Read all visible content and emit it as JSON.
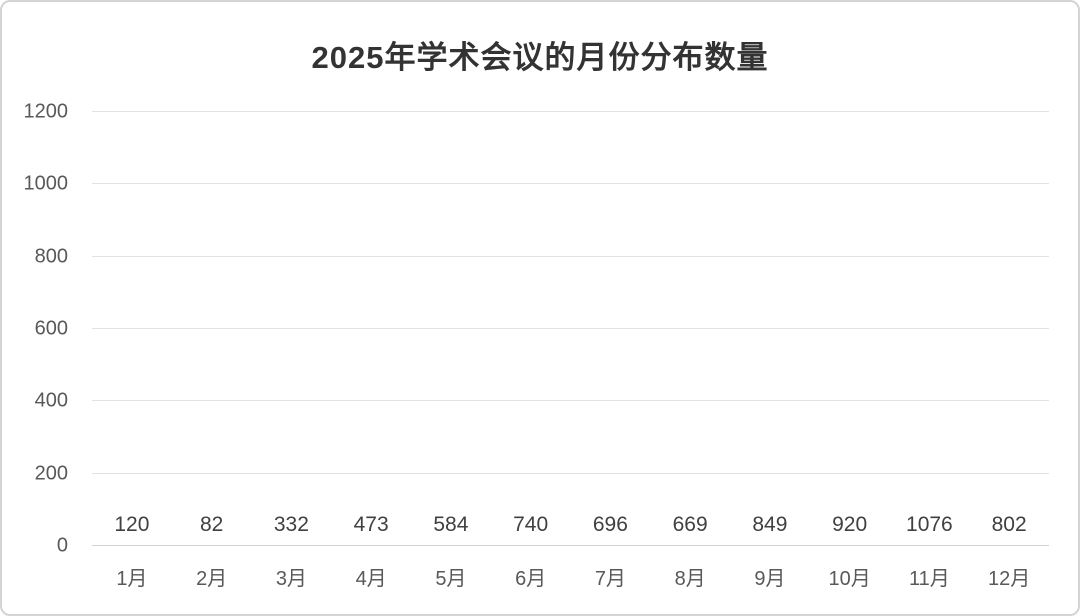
{
  "chart_data": {
    "type": "bar",
    "title": "2025年学术会议的月份分布数量",
    "categories": [
      "1月",
      "2月",
      "3月",
      "4月",
      "5月",
      "6月",
      "7月",
      "8月",
      "9月",
      "10月",
      "11月",
      "12月"
    ],
    "values": [
      120,
      82,
      332,
      473,
      584,
      740,
      696,
      669,
      849,
      920,
      1076,
      802
    ],
    "xlabel": "",
    "ylabel": "",
    "ylim": [
      0,
      1200
    ],
    "y_ticks": [
      0,
      200,
      400,
      600,
      800,
      1000,
      1200
    ],
    "grid": true,
    "legend_position": "none",
    "data_labels": true,
    "colors": {
      "bar": "#ED7D31",
      "gridline": "#E2E2E2",
      "axis_text": "#595959",
      "data_label_text": "#404040",
      "title_text": "#333333",
      "frame_border": "#D4D4D4",
      "background": "#FFFFFF"
    }
  }
}
